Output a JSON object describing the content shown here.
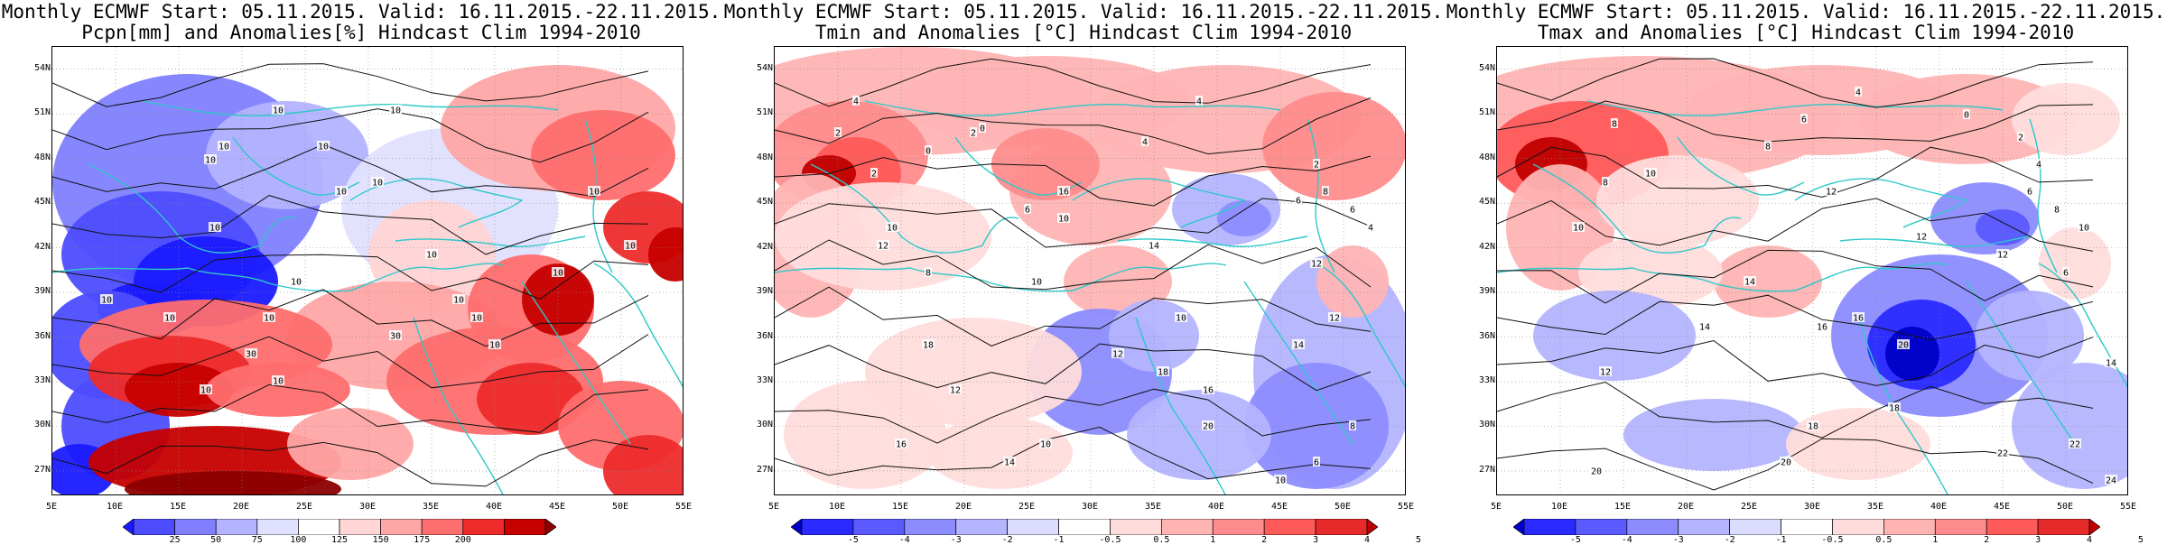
{
  "panels": [
    {
      "title_line1": "Monthly ECMWF Start: 05.11.2015. Valid: 16.11.2015.-22.11.2015.",
      "title_line2": "Pcpn[mm] and Anomalies[%] Hindcast Clim 1994-2010",
      "variable": "precipitation",
      "palette": [
        "#1a1aff",
        "#4d4dff",
        "#8080ff",
        "#b3b3ff",
        "#e0e0ff",
        "#ffffff",
        "#ffd5d5",
        "#ffa6a6",
        "#ff6e6e",
        "#ee2b2b",
        "#c60000",
        "#8c0000"
      ],
      "colorbar_labels": [
        "25",
        "50",
        "75",
        "100",
        "125",
        "150",
        "175",
        "200"
      ],
      "contour_labels": [
        "10",
        "10",
        "10",
        "10",
        "10",
        "10",
        "10",
        "10",
        "10",
        "10",
        "10",
        "30",
        "30",
        "10",
        "10",
        "10",
        "10",
        "10",
        "10",
        "10",
        "10",
        "10",
        "10"
      ]
    },
    {
      "title_line1": "Monthly ECMWF Start: 05.11.2015. Valid: 16.11.2015.-22.11.2015.",
      "title_line2": "Tmin and Anomalies [°C] Hindcast Clim 1994-2010",
      "variable": "tmin",
      "palette": [
        "#0000c8",
        "#2a2aff",
        "#5a5aff",
        "#8c8cff",
        "#b4b4ff",
        "#dcdcff",
        "#ffffff",
        "#ffdcdc",
        "#ffb4b4",
        "#ff8c8c",
        "#ff5a5a",
        "#e62a2a",
        "#c00000"
      ],
      "colorbar_labels": [
        "-5",
        "-4",
        "-3",
        "-2",
        "-1",
        "-0.5",
        "0.5",
        "1",
        "2",
        "3",
        "4",
        "5"
      ],
      "contour_labels": [
        "4",
        "2",
        "0",
        "2",
        "2",
        "6",
        "10",
        "4",
        "4",
        "0",
        "10",
        "8",
        "2",
        "6",
        "10",
        "12",
        "14",
        "16",
        "18",
        "12",
        "10",
        "18",
        "10",
        "12",
        "16",
        "14",
        "20",
        "6",
        "8",
        "10",
        "12",
        "14",
        "16",
        "12",
        "4",
        "6",
        "8"
      ]
    },
    {
      "title_line1": "Monthly ECMWF Start: 05.11.2015. Valid: 16.11.2015.-22.11.2015.",
      "title_line2": "Tmax and Anomalies [°C] Hindcast Clim 1994-2010",
      "variable": "tmax",
      "palette": [
        "#0000c8",
        "#2a2aff",
        "#5a5aff",
        "#8c8cff",
        "#b4b4ff",
        "#dcdcff",
        "#ffffff",
        "#ffdcdc",
        "#ffb4b4",
        "#ff8c8c",
        "#ff5a5a",
        "#e62a2a",
        "#c00000"
      ],
      "colorbar_labels": [
        "-5",
        "-4",
        "-3",
        "-2",
        "-1",
        "-0.5",
        "0.5",
        "1",
        "2",
        "3",
        "4",
        "5"
      ],
      "contour_labels": [
        "8",
        "4",
        "6",
        "8",
        "10",
        "0",
        "2",
        "4",
        "6",
        "12",
        "8",
        "10",
        "14",
        "16",
        "12",
        "12",
        "8",
        "10",
        "6",
        "12",
        "14",
        "16",
        "18",
        "20",
        "18",
        "20",
        "22",
        "24",
        "20",
        "22",
        "14"
      ]
    }
  ],
  "lat_labels": [
    "54N",
    "51N",
    "48N",
    "45N",
    "42N",
    "39N",
    "36N",
    "33N",
    "30N",
    "27N"
  ],
  "lon_labels": [
    "5E",
    "10E",
    "15E",
    "20E",
    "25E",
    "30E",
    "35E",
    "40E",
    "45E",
    "50E",
    "55E"
  ]
}
